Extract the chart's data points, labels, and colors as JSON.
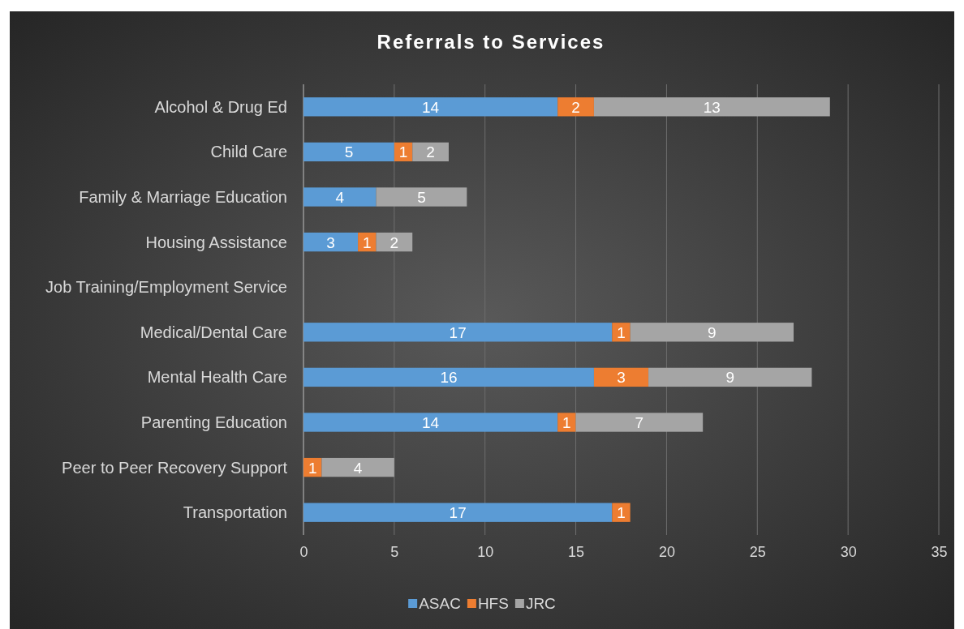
{
  "chart_data": {
    "type": "bar",
    "orientation": "horizontal",
    "stacked": true,
    "title": "Referrals to Services",
    "categories": [
      "Alcohol & Drug Ed",
      "Child Care",
      "Family & Marriage Education",
      "Housing Assistance",
      "Job Training/Employment Service",
      "Medical/Dental Care",
      "Mental Health Care",
      "Parenting Education",
      "Peer to Peer Recovery Support",
      "Transportation"
    ],
    "series": [
      {
        "name": "ASAC",
        "color": "#5b9bd5",
        "values": [
          14,
          5,
          4,
          3,
          null,
          17,
          16,
          14,
          null,
          17
        ]
      },
      {
        "name": "HFS",
        "color": "#ed7d31",
        "values": [
          2,
          1,
          null,
          1,
          null,
          1,
          3,
          1,
          1,
          1
        ]
      },
      {
        "name": "JRC",
        "color": "#a5a5a5",
        "values": [
          13,
          2,
          5,
          2,
          null,
          9,
          9,
          7,
          4,
          null
        ]
      }
    ],
    "xlim": [
      0,
      35
    ],
    "xticks": [
      0,
      5,
      10,
      15,
      20,
      25,
      30,
      35
    ],
    "grid": "x",
    "legend": "bottom",
    "data_labels": true
  }
}
